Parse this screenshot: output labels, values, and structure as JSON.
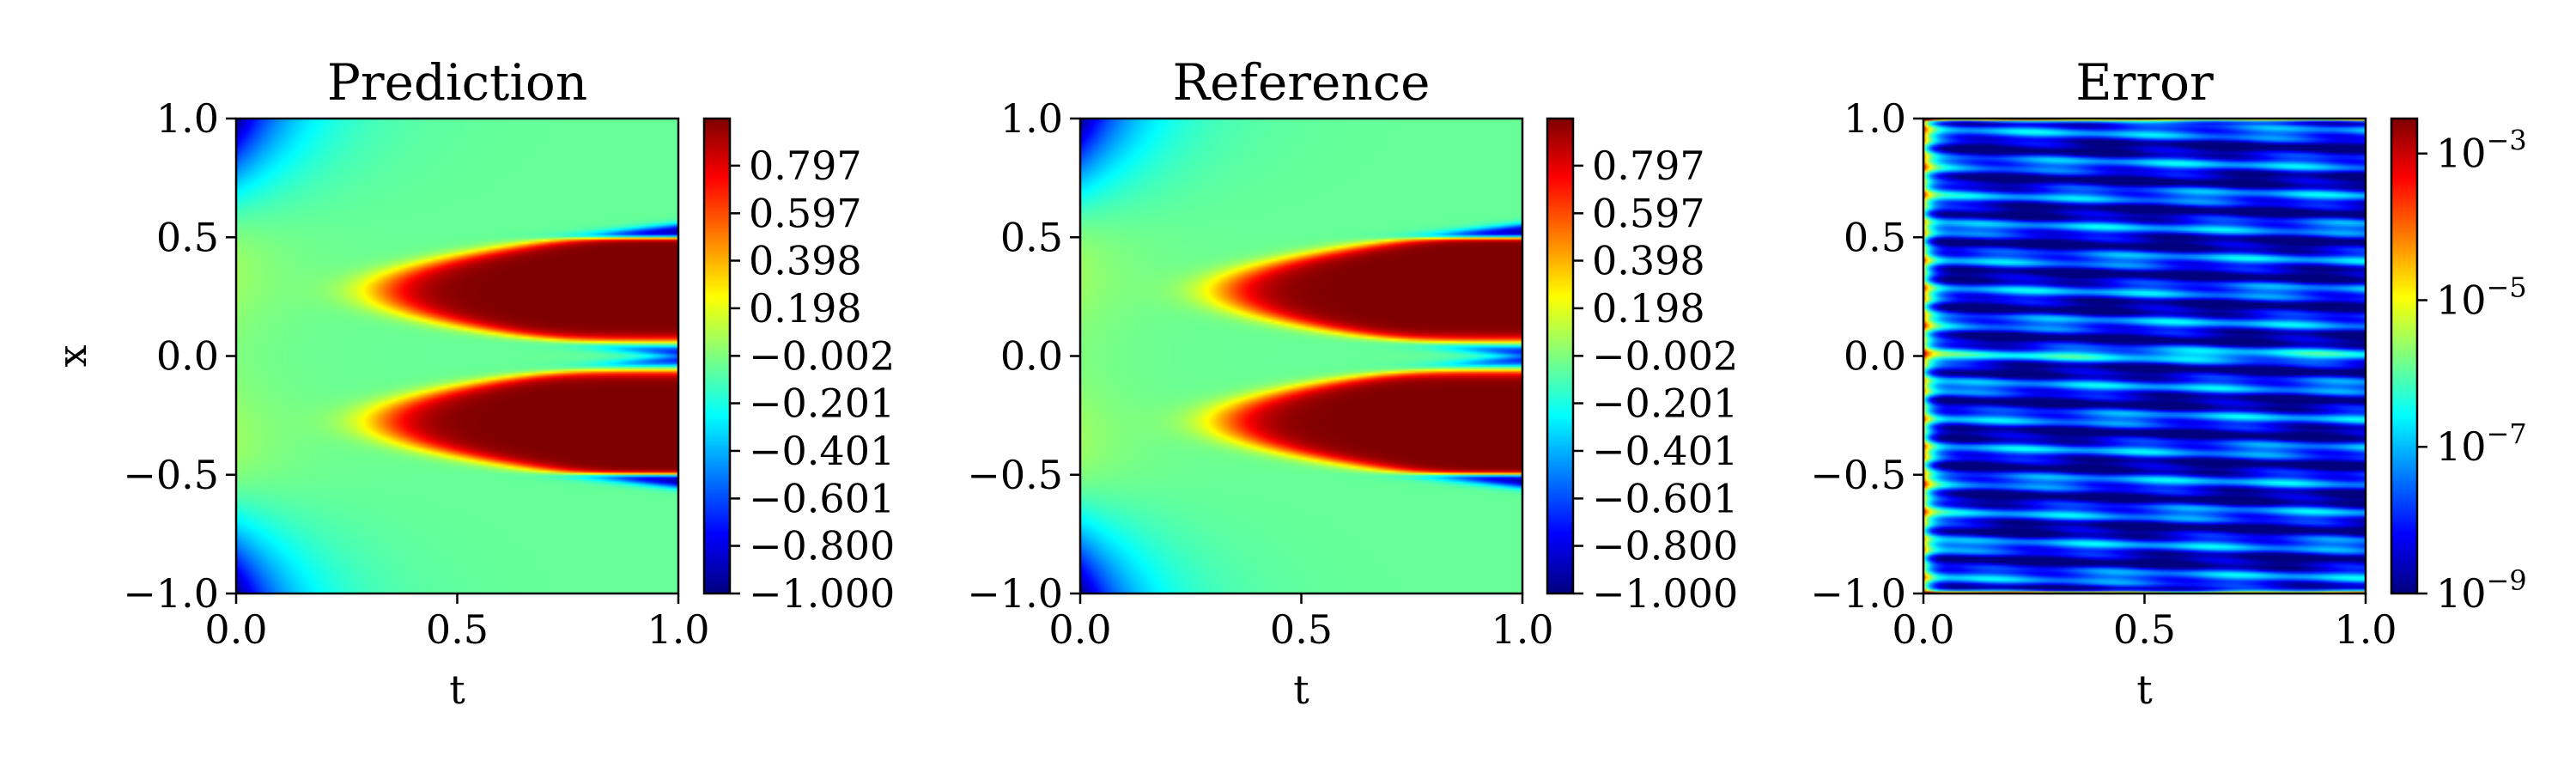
{
  "figure": {
    "colormap": "jet",
    "colormap_stops": [
      "#00007f",
      "#0000ff",
      "#007fff",
      "#00ffff",
      "#7fff7f",
      "#ffff00",
      "#ff7f00",
      "#ff0000",
      "#7f0000"
    ]
  },
  "chart_data": [
    {
      "type": "heatmap",
      "title": "Prediction",
      "xlabel": "t",
      "ylabel": "x",
      "xlim": [
        0.0,
        1.0
      ],
      "ylim": [
        -1.0,
        1.0
      ],
      "xticks": [
        "0.0",
        "0.5",
        "1.0"
      ],
      "yticks": [
        "-1.0",
        "-0.5",
        "0.0",
        "0.5",
        "1.0"
      ],
      "ytick_labels": [
        "−1.0",
        "−0.5",
        "0.0",
        "0.5",
        "1.0"
      ],
      "colorbar": {
        "scale": "linear",
        "range": [
          -1.0,
          0.995
        ],
        "ticks": [
          0.797,
          0.597,
          0.398,
          0.198,
          -0.002,
          -0.201,
          -0.401,
          -0.601,
          -0.8,
          -1.0
        ],
        "tick_labels": [
          "0.797",
          "0.597",
          "0.398",
          "0.198",
          "−0.002",
          "−0.201",
          "−0.401",
          "−0.601",
          "−0.800",
          "−1.000"
        ]
      },
      "field": "allen-cahn"
    },
    {
      "type": "heatmap",
      "title": "Reference",
      "xlabel": "t",
      "ylabel": "",
      "xlim": [
        0.0,
        1.0
      ],
      "ylim": [
        -1.0,
        1.0
      ],
      "xticks": [
        "0.0",
        "0.5",
        "1.0"
      ],
      "yticks": [
        "-1.0",
        "-0.5",
        "0.0",
        "0.5",
        "1.0"
      ],
      "ytick_labels": [
        "−1.0",
        "−0.5",
        "0.0",
        "0.5",
        "1.0"
      ],
      "colorbar": {
        "scale": "linear",
        "range": [
          -1.0,
          0.995
        ],
        "ticks": [
          0.797,
          0.597,
          0.398,
          0.198,
          -0.002,
          -0.201,
          -0.401,
          -0.601,
          -0.8,
          -1.0
        ],
        "tick_labels": [
          "0.797",
          "0.597",
          "0.398",
          "0.198",
          "−0.002",
          "−0.201",
          "−0.401",
          "−0.601",
          "−0.800",
          "−1.000"
        ]
      },
      "field": "allen-cahn"
    },
    {
      "type": "heatmap",
      "title": "Error",
      "xlabel": "t",
      "ylabel": "",
      "xlim": [
        0.0,
        1.0
      ],
      "ylim": [
        -1.0,
        1.0
      ],
      "xticks": [
        "0.0",
        "0.5",
        "1.0"
      ],
      "yticks": [
        "-1.0",
        "-0.5",
        "0.0",
        "0.5",
        "1.0"
      ],
      "ytick_labels": [
        "−1.0",
        "−0.5",
        "0.0",
        "0.5",
        "1.0"
      ],
      "colorbar": {
        "scale": "log",
        "range": [
          1e-09,
          0.003
        ],
        "ticks": [
          0.001,
          1e-05,
          1e-07,
          1e-09
        ],
        "tick_base": [
          "10",
          "10",
          "10",
          "10"
        ],
        "tick_exp": [
          "−3",
          "−5",
          "−7",
          "−9"
        ]
      },
      "field": "abs-error"
    }
  ]
}
